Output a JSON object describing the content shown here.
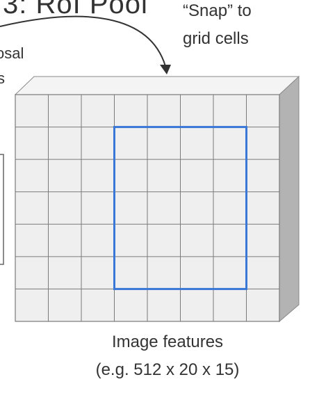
{
  "title_fragment": "3: RoI Pool",
  "annotation": {
    "line1": "“Snap” to",
    "line2": "grid cells"
  },
  "left_label": {
    "line1": "osal",
    "line2": "s"
  },
  "grid": {
    "columns": 8,
    "rows": 7,
    "face_color": "#efefef",
    "line_color": "#7a7a7a",
    "top_color": "#f4f4f4",
    "side_color": "#b3b3b3"
  },
  "highlight": {
    "col_start": 3,
    "col_end": 7,
    "row_start": 1,
    "row_end": 6,
    "color": "#3a78d8"
  },
  "caption": {
    "line1": "Image features",
    "line2": "(e.g. 512 x 20 x 15)"
  }
}
